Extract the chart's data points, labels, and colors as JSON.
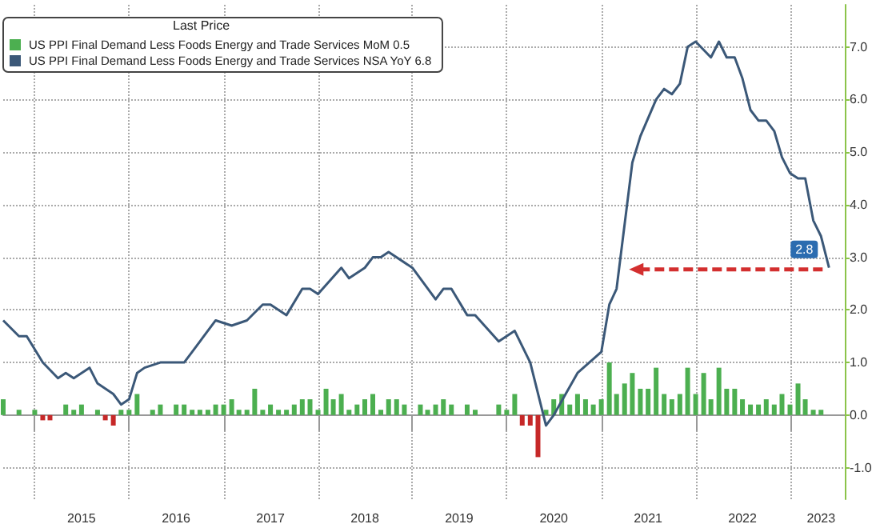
{
  "chart_data": {
    "type": "bar",
    "legend_title": "Last Price",
    "legend": "top left",
    "grid": true,
    "marker": "none",
    "x": [
      "2014-09",
      "2014-10",
      "2014-11",
      "2014-12",
      "2015-01",
      "2015-02",
      "2015-03",
      "2015-04",
      "2015-05",
      "2015-06",
      "2015-07",
      "2015-08",
      "2015-09",
      "2015-10",
      "2015-11",
      "2015-12",
      "2016-01",
      "2016-02",
      "2016-03",
      "2016-04",
      "2016-05",
      "2016-06",
      "2016-07",
      "2016-08",
      "2016-09",
      "2016-10",
      "2016-11",
      "2016-12",
      "2017-01",
      "2017-02",
      "2017-03",
      "2017-04",
      "2017-05",
      "2017-06",
      "2017-07",
      "2017-08",
      "2017-09",
      "2017-10",
      "2017-11",
      "2017-12",
      "2018-01",
      "2018-02",
      "2018-03",
      "2018-04",
      "2018-05",
      "2018-06",
      "2018-07",
      "2018-08",
      "2018-09",
      "2018-10",
      "2018-11",
      "2018-12",
      "2019-01",
      "2019-02",
      "2019-03",
      "2019-04",
      "2019-05",
      "2019-06",
      "2019-07",
      "2019-08",
      "2019-09",
      "2019-10",
      "2019-11",
      "2019-12",
      "2020-01",
      "2020-02",
      "2020-03",
      "2020-04",
      "2020-05",
      "2020-06",
      "2020-07",
      "2020-08",
      "2020-09",
      "2020-10",
      "2020-11",
      "2020-12",
      "2021-01",
      "2021-02",
      "2021-03",
      "2021-04",
      "2021-05",
      "2021-06",
      "2021-07",
      "2021-08",
      "2021-09",
      "2021-10",
      "2021-11",
      "2021-12",
      "2022-01",
      "2022-02",
      "2022-03",
      "2022-04",
      "2022-05",
      "2022-06",
      "2022-07",
      "2022-08",
      "2022-09",
      "2022-10",
      "2022-11",
      "2022-12",
      "2023-01",
      "2023-02",
      "2023-03",
      "2023-04",
      "2023-05"
    ],
    "series": [
      {
        "name": "US PPI Final Demand Less Foods Energy and Trade Services MoM 0.5",
        "color": "#4caf50",
        "values": [
          0.3,
          0,
          0.1,
          0,
          0.1,
          -0.1,
          -0.1,
          0,
          0.2,
          0.1,
          0.2,
          0,
          0.1,
          -0.1,
          -0.2,
          0.1,
          0.1,
          0.4,
          0,
          0.1,
          0.2,
          0,
          0.2,
          0.2,
          0.1,
          0.1,
          0.1,
          0.2,
          0.2,
          0.3,
          0.1,
          0.1,
          0.5,
          0.1,
          0.2,
          0.1,
          0.1,
          0.2,
          0.3,
          0.3,
          0.1,
          0.5,
          0.3,
          0.4,
          0.1,
          0.2,
          0.3,
          0.4,
          0.1,
          0.3,
          0.3,
          0.2,
          0,
          0.2,
          0.1,
          0.2,
          0.3,
          0.2,
          0,
          0.2,
          0.1,
          0,
          0,
          0.2,
          0.1,
          0.4,
          -0.2,
          -0.2,
          -0.8,
          0.1,
          0.3,
          0.4,
          0.2,
          0.4,
          0.3,
          0.2,
          0.3,
          1.0,
          0.4,
          0.6,
          0.8,
          0.5,
          0.5,
          0.9,
          0.4,
          0.3,
          0.4,
          0.9,
          0.4,
          0.8,
          0.3,
          0.9,
          0.5,
          0.5,
          0.3,
          0.2,
          0.2,
          0.3,
          0.2,
          0.4,
          0.2,
          0.6,
          0.3,
          0.1,
          0.1
        ],
        "colors": [
          "#4caf50",
          "#4caf50",
          "#4caf50",
          "#4caf50",
          "#4caf50",
          "#c62828",
          "#c62828",
          "#4caf50",
          "#4caf50",
          "#4caf50",
          "#4caf50",
          "#4caf50",
          "#4caf50",
          "#c62828",
          "#c62828",
          "#4caf50",
          "#4caf50",
          "#4caf50",
          "#4caf50",
          "#4caf50",
          "#4caf50",
          "#4caf50",
          "#4caf50",
          "#4caf50",
          "#4caf50",
          "#4caf50",
          "#4caf50",
          "#4caf50",
          "#4caf50",
          "#4caf50",
          "#4caf50",
          "#4caf50",
          "#4caf50",
          "#4caf50",
          "#4caf50",
          "#4caf50",
          "#4caf50",
          "#4caf50",
          "#4caf50",
          "#4caf50",
          "#4caf50",
          "#4caf50",
          "#4caf50",
          "#4caf50",
          "#4caf50",
          "#4caf50",
          "#4caf50",
          "#4caf50",
          "#4caf50",
          "#4caf50",
          "#4caf50",
          "#4caf50",
          "#4caf50",
          "#4caf50",
          "#4caf50",
          "#4caf50",
          "#4caf50",
          "#4caf50",
          "#4caf50",
          "#4caf50",
          "#4caf50",
          "#4caf50",
          "#4caf50",
          "#4caf50",
          "#4caf50",
          "#4caf50",
          "#c62828",
          "#c62828",
          "#c62828",
          "#4caf50",
          "#4caf50",
          "#4caf50",
          "#4caf50",
          "#4caf50",
          "#4caf50",
          "#4caf50",
          "#4caf50",
          "#4caf50",
          "#4caf50",
          "#4caf50",
          "#4caf50",
          "#4caf50",
          "#4caf50",
          "#4caf50",
          "#4caf50",
          "#4caf50",
          "#4caf50",
          "#4caf50",
          "#4caf50",
          "#4caf50",
          "#4caf50",
          "#4caf50",
          "#4caf50",
          "#4caf50",
          "#4caf50",
          "#4caf50",
          "#4caf50",
          "#4caf50",
          "#4caf50",
          "#4caf50",
          "#4caf50",
          "#4caf50",
          "#4caf50",
          "#4caf50",
          "#4caf50"
        ]
      },
      {
        "type": "line",
        "name": "US PPI Final Demand Less Foods Energy and Trade Services NSA YoY 6.8",
        "color": "#3b5878",
        "x": [
          "2014-09",
          "2014-11",
          "2014-12",
          "2015-02",
          "2015-04",
          "2015-05",
          "2015-06",
          "2015-08",
          "2015-09",
          "2015-11",
          "2015-12",
          "2016-01",
          "2016-02",
          "2016-03",
          "2016-05",
          "2016-08",
          "2016-09",
          "2016-10",
          "2016-12",
          "2017-02",
          "2017-04",
          "2017-06",
          "2017-07",
          "2017-09",
          "2017-11",
          "2017-12",
          "2018-01",
          "2018-04",
          "2018-05",
          "2018-07",
          "2018-08",
          "2018-09",
          "2018-10",
          "2019-01",
          "2019-04",
          "2019-05",
          "2019-06",
          "2019-08",
          "2019-09",
          "2019-12",
          "2020-02",
          "2020-04",
          "2020-06",
          "2020-07",
          "2020-10",
          "2021-01",
          "2021-02",
          "2021-03",
          "2021-05",
          "2021-06",
          "2021-08",
          "2021-09",
          "2021-10",
          "2021-11",
          "2021-12",
          "2022-01",
          "2022-03",
          "2022-04",
          "2022-05",
          "2022-06",
          "2022-07",
          "2022-08",
          "2022-09",
          "2022-10",
          "2022-11",
          "2022-12",
          "2023-01",
          "2023-02",
          "2023-03",
          "2023-04",
          "2023-05",
          "2023-06"
        ],
        "values": [
          1.8,
          1.5,
          1.5,
          1.0,
          0.7,
          0.8,
          0.7,
          0.9,
          0.6,
          0.4,
          0.2,
          0.3,
          0.8,
          0.9,
          1.0,
          1.0,
          1.2,
          1.4,
          1.8,
          1.7,
          1.8,
          2.1,
          2.1,
          1.9,
          2.4,
          2.4,
          2.3,
          2.8,
          2.6,
          2.8,
          3.0,
          3.0,
          3.1,
          2.8,
          2.2,
          2.4,
          2.4,
          1.9,
          1.9,
          1.4,
          1.6,
          1.0,
          -0.2,
          0.0,
          0.8,
          1.2,
          2.1,
          2.4,
          4.8,
          5.3,
          6.0,
          6.2,
          6.1,
          6.3,
          7.0,
          7.1,
          6.8,
          7.1,
          6.8,
          6.8,
          6.4,
          5.8,
          5.6,
          5.6,
          5.4,
          4.9,
          4.6,
          4.5,
          4.5,
          3.7,
          3.4,
          2.8
        ]
      }
    ],
    "xlim": [
      "2014-09",
      "2023-08"
    ],
    "xticks": [
      {
        "value": "2015-01",
        "label": null
      },
      {
        "value": "2015-07",
        "label": "2015"
      },
      {
        "value": "2016-01",
        "label": null
      },
      {
        "value": "2016-07",
        "label": "2016"
      },
      {
        "value": "2017-01",
        "label": null
      },
      {
        "value": "2017-07",
        "label": "2017"
      },
      {
        "value": "2018-01",
        "label": null
      },
      {
        "value": "2018-07",
        "label": "2018"
      },
      {
        "value": "2019-01",
        "label": null
      },
      {
        "value": "2019-07",
        "label": "2019"
      },
      {
        "value": "2020-01",
        "label": null
      },
      {
        "value": "2020-07",
        "label": "2020"
      },
      {
        "value": "2021-01",
        "label": null
      },
      {
        "value": "2021-07",
        "label": "2021"
      },
      {
        "value": "2022-01",
        "label": null
      },
      {
        "value": "2022-07",
        "label": "2022"
      },
      {
        "value": "2023-01",
        "label": null
      },
      {
        "value": "2023-05",
        "label": "2023"
      }
    ],
    "ylim": [
      -1.6,
      7.8
    ],
    "yticks": [
      {
        "value": -1,
        "label": "-1.0"
      },
      {
        "value": 0,
        "label": "0.0"
      },
      {
        "value": 1,
        "label": "1.0"
      },
      {
        "value": 2,
        "label": "2.0"
      },
      {
        "value": 3,
        "label": "3.0"
      },
      {
        "value": 4,
        "label": "4.0"
      },
      {
        "value": 5,
        "label": "5.0"
      },
      {
        "value": 6,
        "label": "6.0"
      },
      {
        "value": 7,
        "label": "7.0"
      }
    ],
    "annotations": [
      {
        "text": "2.8",
        "x": "2023-06",
        "y": 2.8
      }
    ]
  }
}
